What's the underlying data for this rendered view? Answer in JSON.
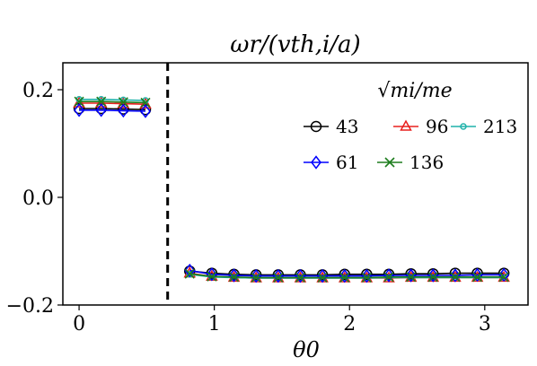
{
  "chart_data": {
    "type": "line",
    "title": "ωr/(vth,i/a)",
    "xlabel": "θ0",
    "ylabel": "",
    "xlim": [
      -0.12,
      3.32
    ],
    "ylim": [
      -0.2,
      0.25
    ],
    "xticks": [
      0,
      1,
      2,
      3
    ],
    "xtick_labels": [
      "0",
      "1",
      "2",
      "3"
    ],
    "yticks": [
      -0.2,
      0.0,
      0.2
    ],
    "ytick_labels": [
      "−0.2",
      "0.0",
      "0.2"
    ],
    "vline_x": 0.655,
    "vline_style": "dashed",
    "legend": {
      "title": "√mi/me",
      "placement": "top-right"
    },
    "x": [
      0.0,
      0.1636,
      0.3272,
      0.4908,
      0.6544,
      0.8181,
      0.9817,
      1.1453,
      1.309,
      1.4726,
      1.6362,
      1.7999,
      1.9635,
      2.1271,
      2.2908,
      2.4544,
      2.618,
      2.7816,
      2.9452,
      3.1416
    ],
    "series": [
      {
        "name": "43",
        "color": "#000000",
        "marker": "circle",
        "values": [
          0.165,
          0.165,
          0.164,
          0.163,
          null,
          -0.137,
          -0.141,
          -0.143,
          -0.144,
          -0.144,
          -0.144,
          -0.144,
          -0.143,
          -0.143,
          -0.143,
          -0.142,
          -0.142,
          -0.141,
          -0.141,
          -0.141
        ]
      },
      {
        "name": "96",
        "color": "#e8201e",
        "marker": "triangle",
        "values": [
          0.175,
          0.175,
          0.174,
          0.173,
          null,
          -0.141,
          -0.147,
          -0.149,
          -0.15,
          -0.15,
          -0.15,
          -0.15,
          -0.15,
          -0.15,
          -0.15,
          -0.149,
          -0.149,
          -0.149,
          -0.149,
          -0.149
        ]
      },
      {
        "name": "213",
        "color": "#1fb2aa",
        "marker": "circle-small",
        "values": [
          0.182,
          0.182,
          0.181,
          0.18,
          null,
          -0.143,
          -0.148,
          -0.149,
          -0.15,
          -0.15,
          -0.15,
          -0.15,
          -0.15,
          -0.15,
          -0.149,
          -0.149,
          -0.149,
          -0.149,
          -0.149,
          -0.149
        ]
      },
      {
        "name": "61",
        "color": "#0000ff",
        "marker": "diamond",
        "values": [
          0.162,
          0.162,
          0.161,
          0.16,
          null,
          -0.136,
          -0.143,
          -0.145,
          -0.146,
          -0.146,
          -0.146,
          -0.146,
          -0.146,
          -0.146,
          -0.145,
          -0.145,
          -0.145,
          -0.145,
          -0.144,
          -0.144
        ]
      },
      {
        "name": "136",
        "color": "#1e7d1e",
        "marker": "x",
        "values": [
          0.178,
          0.178,
          0.177,
          0.176,
          null,
          -0.142,
          -0.147,
          -0.148,
          -0.149,
          -0.149,
          -0.149,
          -0.149,
          -0.149,
          -0.149,
          -0.148,
          -0.148,
          -0.148,
          -0.148,
          -0.148,
          -0.148
        ]
      }
    ]
  }
}
